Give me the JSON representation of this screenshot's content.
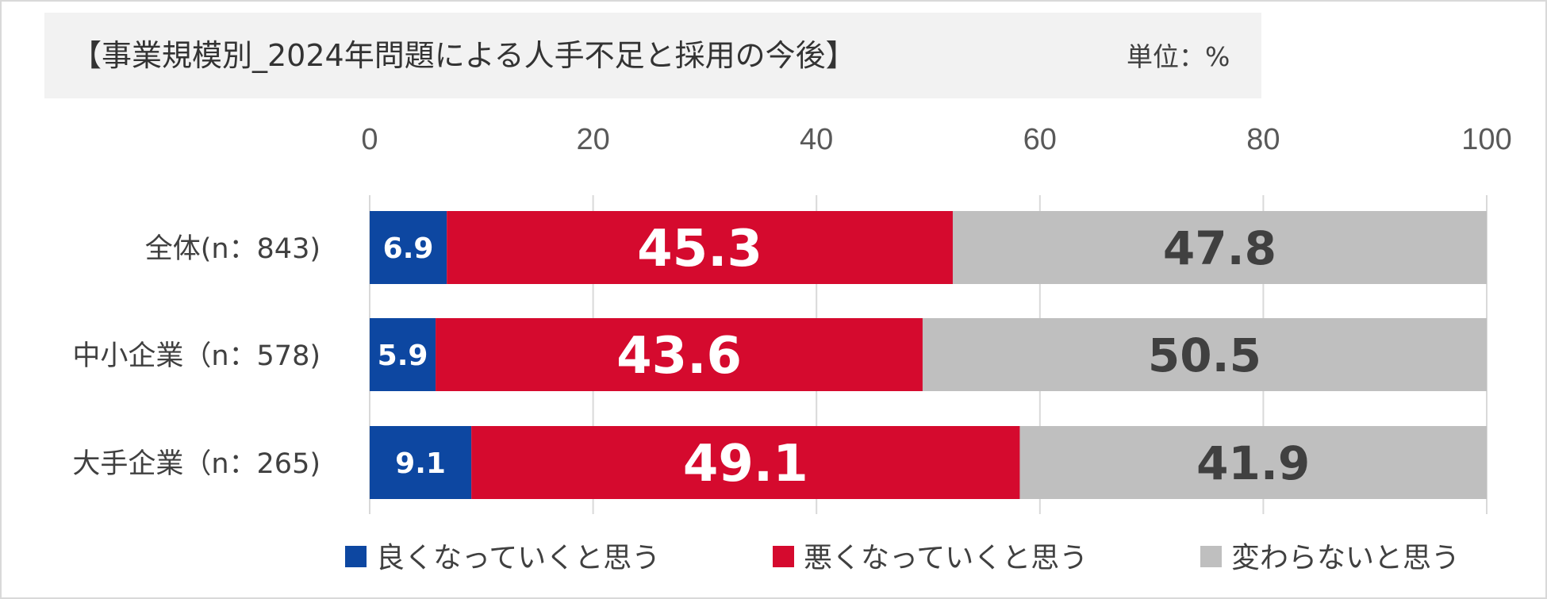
{
  "header": {
    "title": "【事業規模別_2024年問題による人手不足と採用の今後】",
    "unit": "単位：%"
  },
  "colors": {
    "good": "#0d47a1",
    "bad": "#d50a2e",
    "same": "#bfbfbf",
    "label_light": "#ffffff",
    "label_dark": "#404040",
    "grid": "#d9d9d9"
  },
  "chart_data": {
    "type": "bar",
    "orientation": "horizontal",
    "stacked": true,
    "title": "【事業規模別_2024年問題による人手不足と採用の今後】",
    "unit": "単位：%",
    "categories": [
      "全体(n：843)",
      "中小企業（n：578)",
      "大手企業（n：265)"
    ],
    "xlim": [
      0,
      100
    ],
    "xticks": [
      "0",
      "20",
      "40",
      "60",
      "80",
      "100"
    ],
    "xtick_values": [
      0,
      20,
      40,
      60,
      80,
      100
    ],
    "grid": true,
    "legend_position": "bottom",
    "series": [
      {
        "name": "良くなっていくと思う",
        "values": [
          6.9,
          5.9,
          9.1
        ],
        "labels": [
          "6.9",
          "5.9",
          "9.1"
        ]
      },
      {
        "name": "悪くなっていくと思う",
        "values": [
          45.3,
          43.6,
          49.1
        ],
        "labels": [
          "45.3",
          "43.6",
          "49.1"
        ]
      },
      {
        "name": "変わらないと思う",
        "values": [
          47.8,
          50.5,
          41.9
        ],
        "labels": [
          "47.8",
          "50.5",
          "41.9"
        ]
      }
    ]
  }
}
